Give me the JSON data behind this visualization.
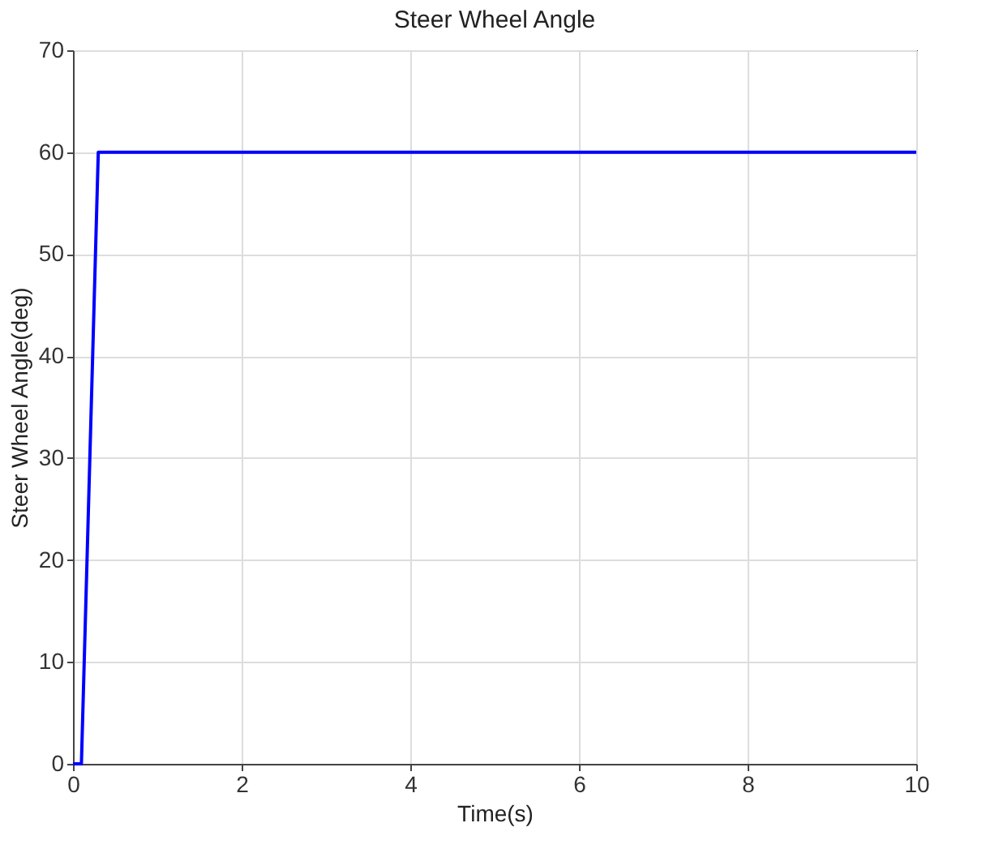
{
  "chart_data": {
    "type": "line",
    "title": "Steer Wheel Angle",
    "xlabel": "Time(s)",
    "ylabel": "Steer Wheel Angle(deg)",
    "series": [
      {
        "color": "#0000ff",
        "x": [
          0,
          0.1,
          0.3,
          10
        ],
        "values": [
          0,
          0,
          60,
          60
        ]
      }
    ],
    "xlim": [
      0,
      10
    ],
    "xticks": [
      0,
      2,
      4,
      6,
      8,
      10
    ],
    "ylim": [
      0,
      70
    ],
    "yticks": [
      0,
      10,
      20,
      30,
      40,
      50,
      60,
      70
    ],
    "grid": true,
    "marker": "none",
    "line_style": "solid"
  }
}
